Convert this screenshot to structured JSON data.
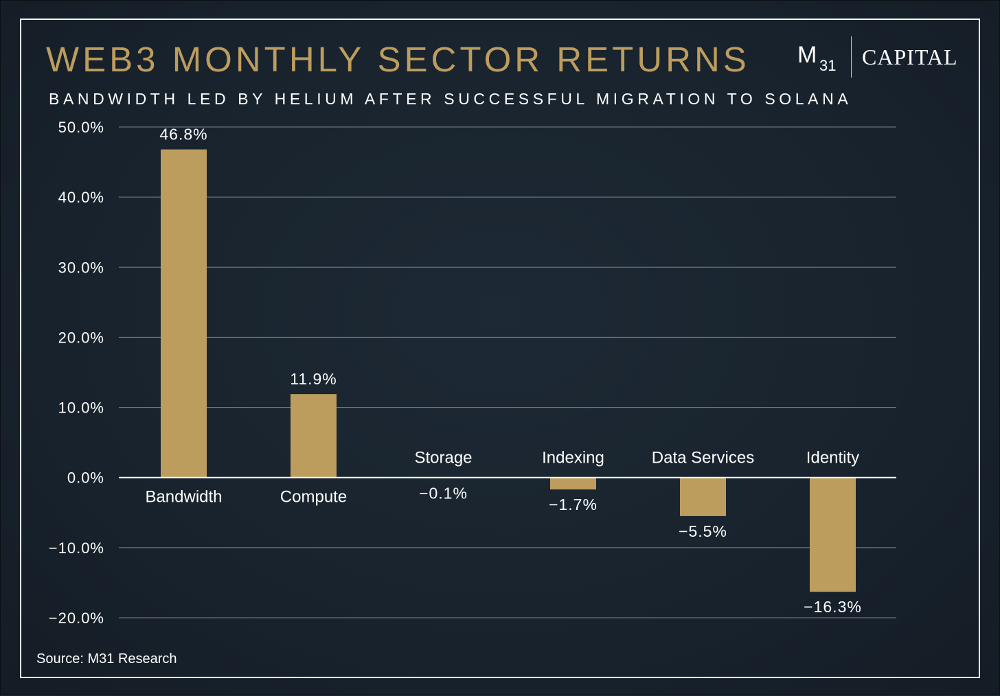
{
  "title": "WEB3 MONTHLY SECTOR RETURNS",
  "subtitle": "BANDWIDTH LED BY HELIUM AFTER SUCCESSFUL MIGRATION TO SOLANA",
  "logo": {
    "mark": "M",
    "number": "31",
    "name": "CAPITAL"
  },
  "source": "Source: M31 Research",
  "colors": {
    "bar": "#bd9d5e",
    "title": "#bd9d5e",
    "background": "#1b2530",
    "grid": "#7d858d",
    "text": "#ffffff"
  },
  "chart_data": {
    "type": "bar",
    "categories": [
      "Bandwidth",
      "Compute",
      "Storage",
      "Indexing",
      "Data Services",
      "Identity"
    ],
    "values": [
      46.8,
      11.9,
      -0.1,
      -1.7,
      -5.5,
      -16.3
    ],
    "data_labels": [
      "46.8%",
      "11.9%",
      "−0.1%",
      "−1.7%",
      "−5.5%",
      "−16.3%"
    ],
    "yticks": [
      50,
      40,
      30,
      20,
      10,
      0,
      -10,
      -20
    ],
    "ytick_labels": [
      "50.0%",
      "40.0%",
      "30.0%",
      "20.0%",
      "10.0%",
      "0.0%",
      "−10.0%",
      "−20.0%"
    ],
    "ylim": [
      -20,
      50
    ],
    "grid": true,
    "legend": "none",
    "title": "WEB3 MONTHLY SECTOR RETURNS",
    "subtitle": "BANDWIDTH LED BY HELIUM AFTER SUCCESSFUL MIGRATION TO SOLANA"
  }
}
